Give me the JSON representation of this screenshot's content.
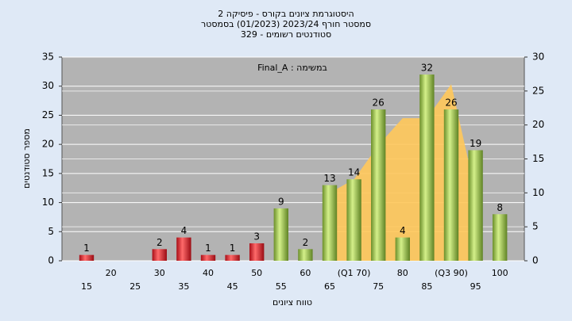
{
  "chart_data": {
    "type": "bar",
    "title": "היסטוגרמת ציונים בקורס - פיסיקה 2",
    "subtitle": "סמסטר חורף 2023/24  (01/2023) בסמסטר",
    "subtitle2": "סטודנטים רשומים - 329",
    "annotation": "Final_A : במשימה",
    "x_label": "טווח ציונים",
    "y_label": "מספר סטודנטים",
    "categories": [
      "15",
      "20",
      "25",
      "30",
      "35",
      "40",
      "45",
      "50",
      "55",
      "60",
      "65",
      "(Q1 70)",
      "75",
      "80",
      "85",
      "(Q3 90)",
      "95",
      "100"
    ],
    "values": [
      1,
      null,
      null,
      2,
      4,
      1,
      1,
      3,
      9,
      2,
      13,
      14,
      26,
      4,
      32,
      26,
      19,
      8
    ],
    "colors": [
      "red",
      null,
      null,
      "red",
      "red",
      "red",
      "red",
      "red",
      "green",
      "green",
      "green",
      "green",
      "green",
      "green",
      "green",
      "green",
      "green",
      "green"
    ],
    "area": {
      "axis": "y2",
      "color": "#ffc85a",
      "values": [
        null,
        null,
        null,
        null,
        null,
        null,
        null,
        null,
        null,
        null,
        10,
        12,
        17,
        21,
        21,
        26,
        10,
        null
      ]
    },
    "ylim": [
      0,
      35
    ],
    "yticks": [
      0,
      5,
      10,
      15,
      20,
      25,
      30,
      35
    ],
    "y2lim": [
      0,
      30
    ],
    "y2ticks": [
      0,
      5,
      10,
      15,
      20,
      25,
      30
    ],
    "grid": true
  }
}
